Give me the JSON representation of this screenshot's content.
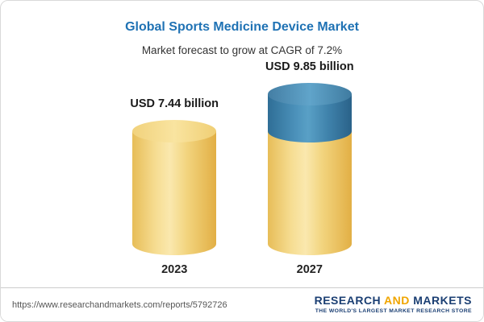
{
  "header": {
    "title": "Global Sports Medicine Device Market",
    "subtitle": "Market forecast to grow at CAGR of 7.2%"
  },
  "chart_data": {
    "type": "bar",
    "title": "Global Sports Medicine Device Market",
    "subtitle": "Market forecast to grow at CAGR of 7.2%",
    "categories": [
      "2023",
      "2027"
    ],
    "values": [
      7.44,
      9.85
    ],
    "value_labels": [
      "USD 7.44 billion",
      "USD 9.85 billion"
    ],
    "unit": "USD billion",
    "cagr": "7.2%",
    "colors": {
      "base_segment": "#f2d47e",
      "growth_segment": "#4d93bc"
    },
    "layout": {
      "bar_style": "3d-cylinder",
      "growth_shown_as": "blue top segment on 2027 cylinder",
      "grid": false,
      "legend": false
    }
  },
  "footer": {
    "url": "https://www.researchandmarkets.com/reports/5792726",
    "brand": {
      "research": "RESEARCH ",
      "and": "AND",
      "markets": " MARKETS",
      "tagline": "THE WORLD'S LARGEST MARKET RESEARCH STORE"
    }
  }
}
